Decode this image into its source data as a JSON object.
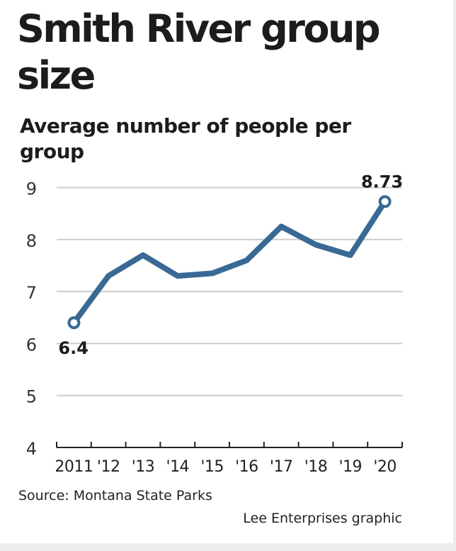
{
  "header": {
    "title": "Smith River group size",
    "subtitle": "Average number of people per group"
  },
  "footer": {
    "source": "Source: Montana State Parks",
    "credit": "Lee Enterprises graphic"
  },
  "colors": {
    "line": "#396994",
    "grid": "#cccccc",
    "text": "#1c1c1c"
  },
  "chart_data": {
    "type": "line",
    "title": "Smith River group size",
    "subtitle": "Average number of people per group",
    "xlabel": "",
    "ylabel": "",
    "categories": [
      "2011",
      "'12",
      "'13",
      "'14",
      "'15",
      "'16",
      "'17",
      "'18",
      "'19",
      "'20"
    ],
    "series": [
      {
        "values": [
          6.4,
          7.3,
          7.7,
          7.3,
          7.35,
          7.6,
          8.25,
          7.9,
          7.7,
          8.73
        ]
      }
    ],
    "yticks": [
      4,
      5,
      6,
      7,
      8,
      9
    ],
    "ylim": [
      4,
      9.2
    ],
    "grid": true,
    "annotations": [
      {
        "index": 0,
        "text": "6.4"
      },
      {
        "index": 9,
        "text": "8.73"
      }
    ]
  }
}
